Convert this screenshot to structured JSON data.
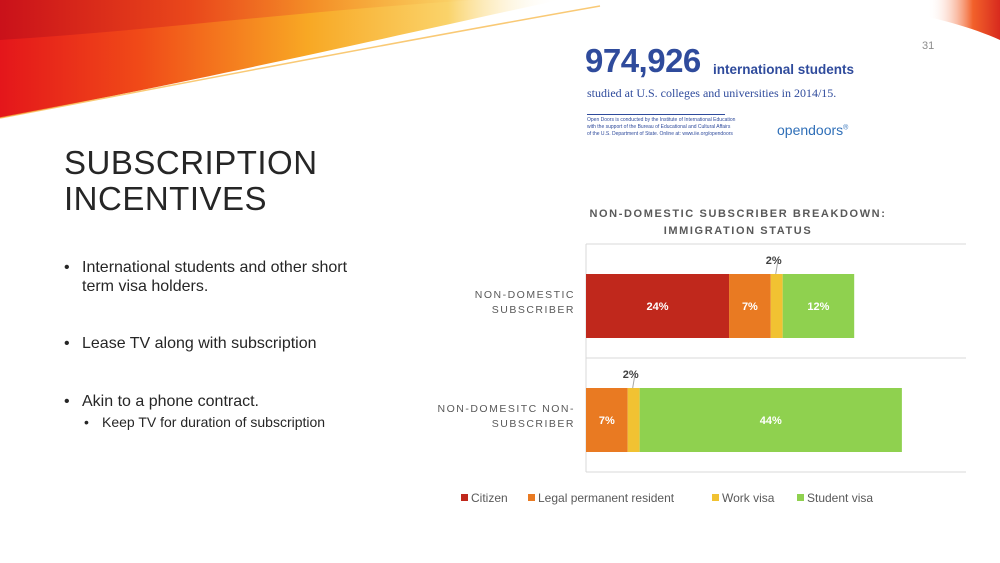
{
  "slide": {
    "number": "31",
    "title_lines": [
      "SUBSCRIPTION",
      "INCENTIVES"
    ],
    "bullets": [
      "International students and other short term visa holders.",
      "Lease TV along with subscription",
      "Akin to a phone contract."
    ],
    "sub_bullet": "Keep TV for duration of subscription"
  },
  "opendoors": {
    "number": "974,926",
    "suffix": "international students",
    "subtitle": "studied at U.S. colleges and universities in 2014/15.",
    "note_lines": [
      "Open Doors is conducted by the Institute of International Education",
      "with the support of the Bureau of Educational and Cultural Affairs",
      "of the U.S. Department of State. Online at: www.iie.org/opendoors"
    ],
    "logo": "opendoors",
    "logo_mark": "®"
  },
  "colors": {
    "citizen": "#c0281c",
    "legal_permanent_resident": "#e97a22",
    "work_visa": "#f1c232",
    "student_visa": "#8fd14f",
    "od_blue": "#2f4b9c"
  },
  "chart_data": {
    "type": "bar",
    "orientation": "horizontal",
    "stacked": true,
    "title_lines": [
      "NON-DOMESTIC SUBSCRIBER BREAKDOWN:",
      "IMMIGRATION STATUS"
    ],
    "categories": [
      [
        "NON-DOMESTIC",
        "SUBSCRIBER"
      ],
      [
        "NON-DOMESITC NON-",
        "SUBSCRIBER"
      ]
    ],
    "series": [
      {
        "name": "Citizen",
        "values": [
          24,
          0
        ],
        "labels": [
          "24%",
          ""
        ]
      },
      {
        "name": "Legal permanent resident",
        "values": [
          7,
          7
        ],
        "labels": [
          "7%",
          "7%"
        ]
      },
      {
        "name": "Work visa",
        "values": [
          2,
          2
        ],
        "labels": [
          "2%",
          "2%"
        ]
      },
      {
        "name": "Student visa",
        "values": [
          12,
          44
        ],
        "labels": [
          "12%",
          "44%"
        ]
      }
    ],
    "legend": [
      "Citizen",
      "Legal permanent resident",
      "Work visa",
      "Student visa"
    ],
    "legend_position": "bottom"
  }
}
